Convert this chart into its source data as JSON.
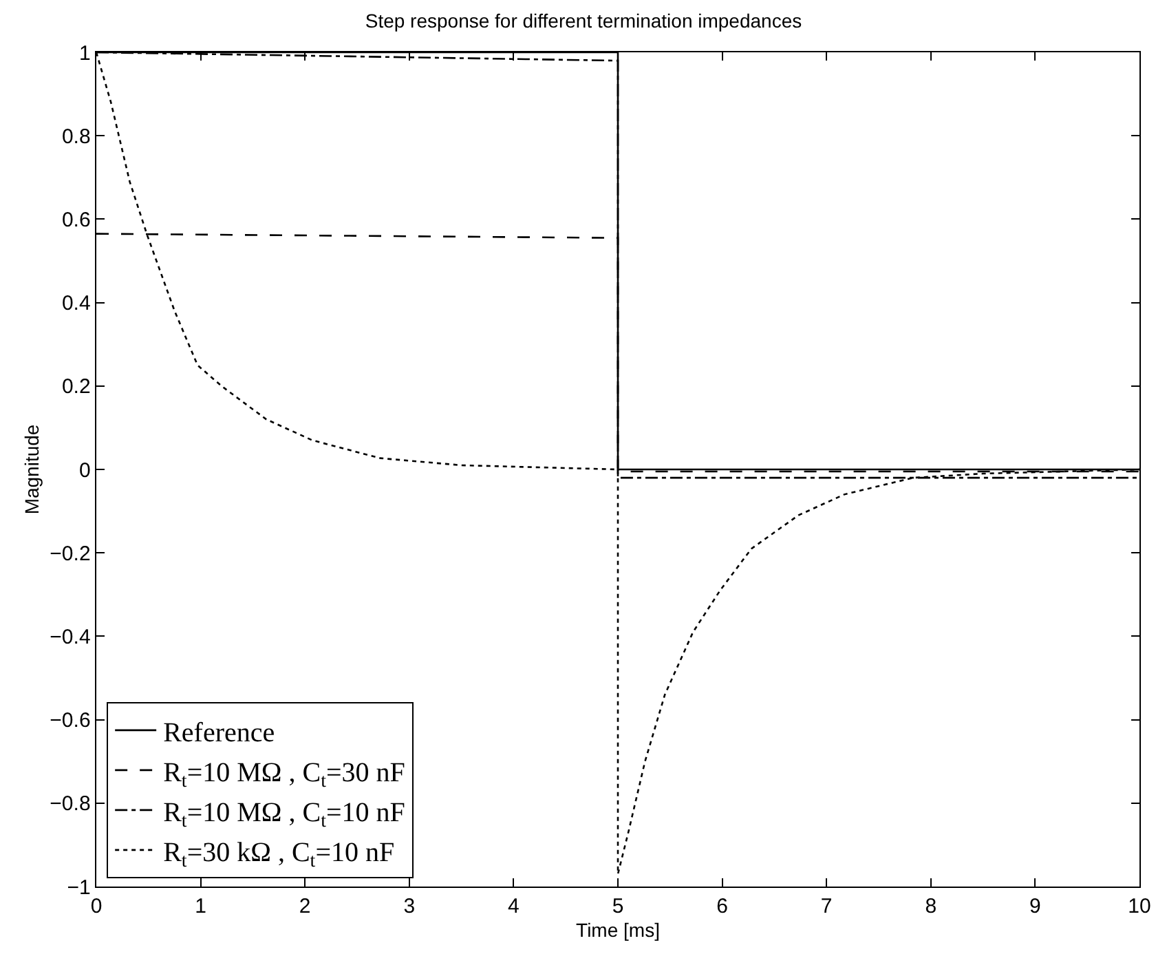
{
  "chart_data": {
    "type": "line",
    "title": "Step response for different termination impedances",
    "xlabel": "Time [ms]",
    "ylabel": "Magnitude",
    "xlim": [
      0,
      10
    ],
    "xticks": [
      0,
      1,
      2,
      3,
      4,
      5,
      6,
      7,
      8,
      9,
      10
    ],
    "ylim": [
      -1,
      1
    ],
    "yticks": [
      -1,
      -0.8,
      -0.6,
      -0.4,
      -0.2,
      0,
      0.2,
      0.4,
      0.6,
      0.8,
      1
    ],
    "grid": false,
    "legend": "bottom left",
    "marker": "none",
    "series": [
      {
        "name": "Reference",
        "color": "#000000",
        "line_style": "solid",
        "x": [
          0,
          5,
          5,
          10
        ],
        "values": [
          1,
          1,
          0,
          0
        ]
      },
      {
        "name": "R$_{t}$=10 MΩ , C$_{t}$=30 nF",
        "color": "#000000",
        "line_style": "dashed",
        "x": [
          0,
          5,
          5,
          10
        ],
        "values": [
          0.565,
          0.555,
          -0.005,
          -0.005
        ]
      },
      {
        "name": "R$_{t}$=10 MΩ , C$_{t}$=10 nF",
        "color": "#000000",
        "line_style": "dashdot",
        "x": [
          0,
          5,
          5,
          10
        ],
        "values": [
          1,
          0.98,
          -0.02,
          -0.02
        ]
      },
      {
        "name": "R$_{t}$=30 kΩ , C$_{t}$=10 nF",
        "color": "#000000",
        "line_style": "dotted",
        "x": [
          0,
          0.14,
          0.32,
          0.49,
          0.75,
          0.97,
          1.2,
          1.63,
          2.07,
          2.72,
          3.5,
          4.25,
          5,
          5,
          5.1,
          5.26,
          5.45,
          5.72,
          5.98,
          6.28,
          6.73,
          7.17,
          7.83,
          8.5,
          10
        ],
        "values": [
          1,
          0.88,
          0.69,
          0.56,
          0.38,
          0.25,
          0.2,
          0.12,
          0.07,
          0.027,
          0.01,
          0.005,
          0,
          -0.97,
          -0.87,
          -0.7,
          -0.54,
          -0.39,
          -0.29,
          -0.19,
          -0.11,
          -0.06,
          -0.02,
          -0.01,
          0
        ]
      }
    ]
  }
}
